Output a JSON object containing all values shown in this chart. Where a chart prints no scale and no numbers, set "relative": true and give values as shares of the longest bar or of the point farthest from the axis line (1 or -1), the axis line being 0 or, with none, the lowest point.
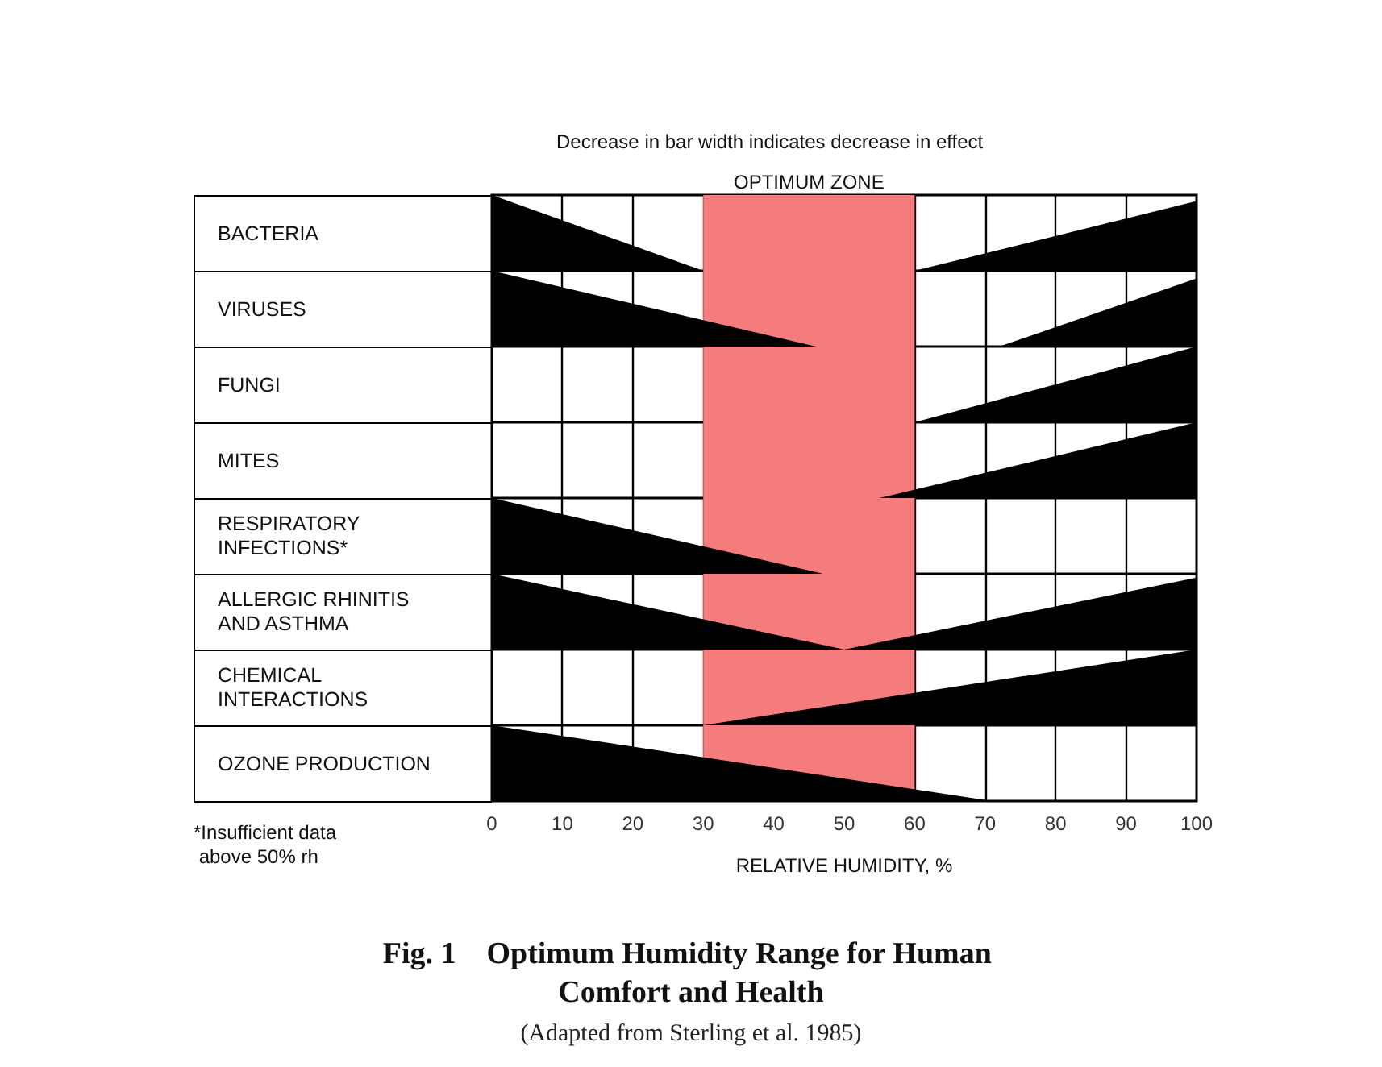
{
  "chart_data": [
    {
      "type": "area",
      "ylabel": "BACTERIA",
      "x": [
        0,
        30,
        60,
        100
      ],
      "values": [
        1,
        0,
        0,
        0.92
      ],
      "color": "#000000",
      "relative": true,
      "xlim": [
        0,
        100
      ],
      "xticks": [
        0,
        10,
        20,
        30,
        40,
        50,
        60,
        70,
        80,
        90,
        100
      ],
      "grid": "x",
      "tick_labels": false,
      "annotations": [
        "Decrease in bar width indicates decrease in effect"
      ],
      "bands": [
        {
          "axis": "x",
          "from": 30,
          "to": 60,
          "label": "OPTIMUM ZONE",
          "color": "#f47c7c"
        }
      ]
    },
    {
      "type": "area",
      "ylabel": "VIRUSES",
      "x": [
        0,
        46,
        72,
        100
      ],
      "values": [
        1,
        0,
        0,
        0.9
      ],
      "color": "#000000",
      "relative": true,
      "xlim": [
        0,
        100
      ],
      "xticks": [
        0,
        10,
        20,
        30,
        40,
        50,
        60,
        70,
        80,
        90,
        100
      ],
      "grid": "x",
      "tick_labels": false,
      "bands": [
        {
          "axis": "x",
          "from": 30,
          "to": 60,
          "color": "#f47c7c"
        }
      ]
    },
    {
      "type": "area",
      "ylabel": "FUNGI",
      "x": [
        60,
        100
      ],
      "values": [
        0,
        1
      ],
      "color": "#000000",
      "relative": true,
      "xlim": [
        0,
        100
      ],
      "xticks": [
        0,
        10,
        20,
        30,
        40,
        50,
        60,
        70,
        80,
        90,
        100
      ],
      "grid": "x",
      "tick_labels": false,
      "bands": [
        {
          "axis": "x",
          "from": 30,
          "to": 60,
          "color": "#f47c7c"
        }
      ]
    },
    {
      "type": "area",
      "ylabel": "MITES",
      "x": [
        55,
        100
      ],
      "values": [
        0,
        1
      ],
      "color": "#000000",
      "relative": true,
      "xlim": [
        0,
        100
      ],
      "xticks": [
        0,
        10,
        20,
        30,
        40,
        50,
        60,
        70,
        80,
        90,
        100
      ],
      "grid": "x",
      "tick_labels": false,
      "bands": [
        {
          "axis": "x",
          "from": 30,
          "to": 60,
          "color": "#f47c7c"
        }
      ]
    },
    {
      "type": "area",
      "ylabel": "RESPIRATORY INFECTIONS*",
      "x": [
        0,
        47
      ],
      "values": [
        1,
        0
      ],
      "color": "#000000",
      "relative": true,
      "xlim": [
        0,
        100
      ],
      "xticks": [
        0,
        10,
        20,
        30,
        40,
        50,
        60,
        70,
        80,
        90,
        100
      ],
      "grid": "x",
      "tick_labels": false,
      "bands": [
        {
          "axis": "x",
          "from": 30,
          "to": 60,
          "color": "#f47c7c"
        }
      ]
    },
    {
      "type": "area",
      "ylabel": "ALLERGIC RHINITIS AND ASTHMA",
      "x": [
        0,
        50,
        100
      ],
      "values": [
        1,
        0,
        0.95
      ],
      "color": "#000000",
      "relative": true,
      "xlim": [
        0,
        100
      ],
      "xticks": [
        0,
        10,
        20,
        30,
        40,
        50,
        60,
        70,
        80,
        90,
        100
      ],
      "grid": "x",
      "tick_labels": false,
      "bands": [
        {
          "axis": "x",
          "from": 30,
          "to": 60,
          "color": "#f47c7c"
        }
      ]
    },
    {
      "type": "area",
      "ylabel": "CHEMICAL INTERACTIONS",
      "x": [
        30,
        100
      ],
      "values": [
        0,
        1
      ],
      "color": "#000000",
      "relative": true,
      "xlim": [
        0,
        100
      ],
      "xticks": [
        0,
        10,
        20,
        30,
        40,
        50,
        60,
        70,
        80,
        90,
        100
      ],
      "grid": "x",
      "tick_labels": false,
      "bands": [
        {
          "axis": "x",
          "from": 30,
          "to": 60,
          "color": "#f47c7c"
        }
      ]
    },
    {
      "type": "area",
      "ylabel": "OZONE PRODUCTION",
      "x": [
        0,
        71
      ],
      "values": [
        1,
        0
      ],
      "color": "#000000",
      "relative": true,
      "xlim": [
        0,
        100
      ],
      "xticks": [
        0,
        10,
        20,
        30,
        40,
        50,
        60,
        70,
        80,
        90,
        100
      ],
      "grid": "x",
      "tick_labels": "x",
      "xlabel": "RELATIVE HUMIDITY, %",
      "title": "Fig. 1    Optimum Humidity Range for Human Comfort and Health",
      "subtitle": "(Adapted from Sterling et al. 1985)",
      "annotations": [
        "*Insufficient data above 50% rh"
      ],
      "bands": [
        {
          "axis": "x",
          "from": 30,
          "to": 60,
          "color": "#f47c7c"
        }
      ]
    }
  ]
}
